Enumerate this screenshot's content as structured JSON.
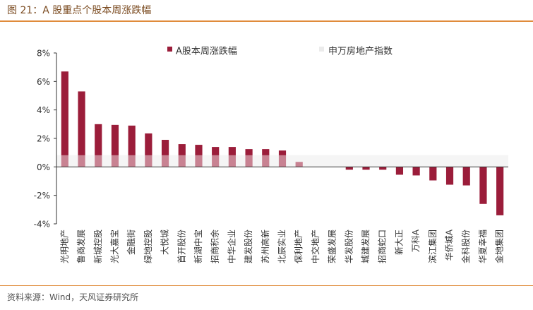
{
  "figure": {
    "title": "图 21：A 股重点个股本周涨跌幅",
    "source": "资料来源：Wind，天风证券研究所"
  },
  "colors": {
    "bar": "#9b1d3a",
    "index_band": "#ebebeb",
    "accent_rule": "#e08b3b",
    "axis": "#333333"
  },
  "chart_data": {
    "type": "bar",
    "title": "",
    "xlabel": "",
    "ylabel": "",
    "ylim": [
      -4,
      8
    ],
    "yticks": [
      -4,
      -2,
      0,
      2,
      4,
      6,
      8
    ],
    "ytick_labels": [
      "-4%",
      "-2%",
      "0%",
      "2%",
      "4%",
      "6%",
      "8%"
    ],
    "unit": "%",
    "grid": false,
    "legend_position": "top",
    "categories": [
      "光明地产",
      "鲁商发展",
      "新城控股",
      "光大嘉宝",
      "金融街",
      "绿地控股",
      "大悦城",
      "首开股份",
      "新湖中宝",
      "招商积余",
      "中华企业",
      "建发股份",
      "苏州高新",
      "北辰实业",
      "保利地产",
      "中交地产",
      "荣盛发展",
      "华发股份",
      "城建发展",
      "招商蛇口",
      "新大正",
      "万科A",
      "滨江集团",
      "华侨城A",
      "金科股份",
      "华夏幸福",
      "金地集团"
    ],
    "series": [
      {
        "name": "A股本周涨跌幅",
        "values": [
          6.7,
          5.3,
          3.0,
          2.95,
          2.9,
          2.35,
          1.9,
          1.6,
          1.55,
          1.4,
          1.4,
          1.25,
          1.25,
          1.15,
          0.35,
          0.0,
          0.0,
          -0.2,
          -0.2,
          -0.2,
          -0.55,
          -0.6,
          -0.95,
          -1.25,
          -1.3,
          -2.6,
          -3.4
        ]
      },
      {
        "name": "申万房地产指数",
        "value": 0.82
      }
    ]
  }
}
